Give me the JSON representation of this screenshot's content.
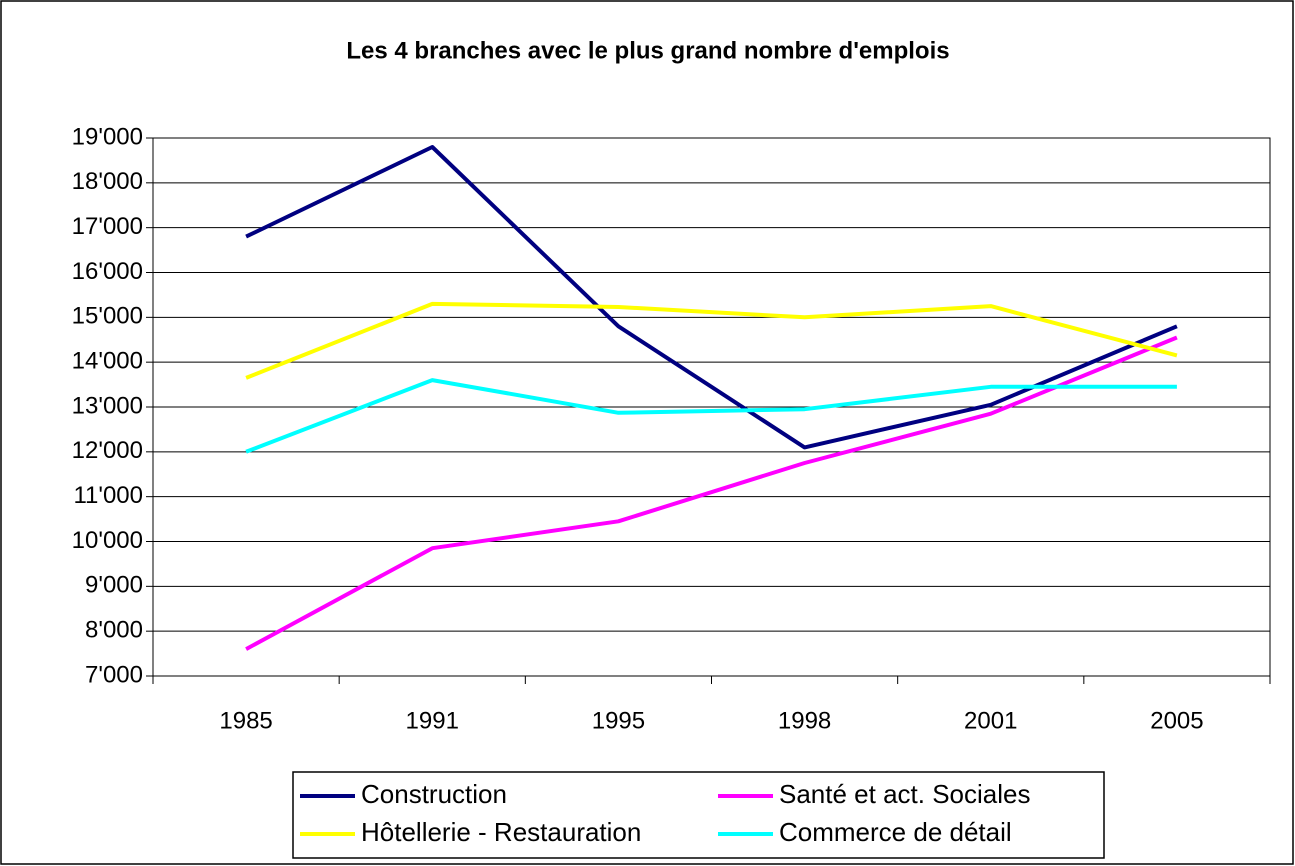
{
  "chart_data": {
    "type": "line",
    "title": "Les 4 branches avec le plus grand nombre d'emplois",
    "categories": [
      "1985",
      "1991",
      "1995",
      "1998",
      "2001",
      "2005"
    ],
    "series": [
      {
        "name": "Construction",
        "color": "#000080",
        "values": [
          16800,
          18800,
          14800,
          12100,
          13050,
          14800
        ]
      },
      {
        "name": "Santé et act. Sociales",
        "color": "#ff00ff",
        "values": [
          7600,
          9850,
          10450,
          11750,
          12850,
          14550
        ]
      },
      {
        "name": "Hôtellerie - Restauration",
        "color": "#ffff00",
        "values": [
          13650,
          15300,
          15230,
          15000,
          15250,
          14150
        ]
      },
      {
        "name": "Commerce de détail",
        "color": "#00ffff",
        "values": [
          12000,
          13600,
          12870,
          12950,
          13450,
          13450
        ]
      }
    ],
    "ylim": [
      7000,
      19000
    ],
    "yticks": [
      {
        "value": 7000,
        "label": "7'000"
      },
      {
        "value": 8000,
        "label": "8'000"
      },
      {
        "value": 9000,
        "label": "9'000"
      },
      {
        "value": 10000,
        "label": "10'000"
      },
      {
        "value": 11000,
        "label": "11'000"
      },
      {
        "value": 12000,
        "label": "12'000"
      },
      {
        "value": 13000,
        "label": "13'000"
      },
      {
        "value": 14000,
        "label": "14'000"
      },
      {
        "value": 15000,
        "label": "15'000"
      },
      {
        "value": 16000,
        "label": "16'000"
      },
      {
        "value": 17000,
        "label": "17'000"
      },
      {
        "value": 18000,
        "label": "18'000"
      },
      {
        "value": 19000,
        "label": "19'000"
      }
    ],
    "grid": true,
    "legend": "bottom"
  }
}
